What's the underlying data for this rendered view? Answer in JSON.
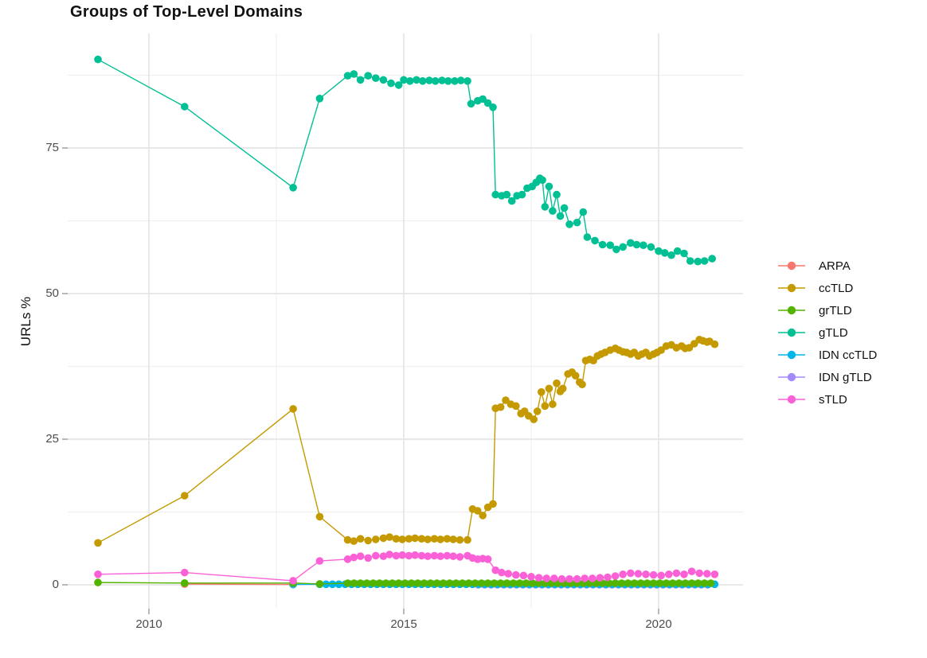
{
  "chart_data": {
    "type": "line",
    "title": "Groups of Top-Level Domains",
    "xlabel": "",
    "ylabel": "URLs %",
    "xlim": [
      2008.4,
      2021.7
    ],
    "ylim": [
      -4.1,
      94.5
    ],
    "x_ticks": [
      2010,
      2015,
      2020
    ],
    "x_tick_labels": [
      "2010",
      "2015",
      "2020"
    ],
    "x_minor_ticks": [
      2012.5,
      2017.5
    ],
    "y_ticks": [
      0,
      25,
      50,
      75
    ],
    "y_tick_labels": [
      "0",
      "25",
      "50",
      "75"
    ],
    "y_minor_ticks": [
      12.5,
      37.5,
      62.5,
      87.5
    ],
    "grid": true,
    "legend_position": "right",
    "series": [
      {
        "name": "ARPA",
        "color": "#F8766D",
        "points": [
          [
            2010.7,
            0.12
          ],
          [
            2012.83,
            0.06
          ]
        ]
      },
      {
        "name": "ccTLD",
        "color": "#C49A00",
        "points": [
          [
            2009,
            7.2
          ],
          [
            2010.7,
            15.3
          ],
          [
            2012.83,
            30.2
          ],
          [
            2013.35,
            11.7
          ],
          [
            2013.9,
            7.7
          ],
          [
            2014.02,
            7.5
          ],
          [
            2014.15,
            7.9
          ],
          [
            2014.3,
            7.6
          ],
          [
            2014.45,
            7.8
          ],
          [
            2014.6,
            8.0
          ],
          [
            2014.72,
            8.2
          ],
          [
            2014.85,
            7.9
          ],
          [
            2014.97,
            7.8
          ],
          [
            2015.1,
            7.9
          ],
          [
            2015.22,
            8.0
          ],
          [
            2015.35,
            7.9
          ],
          [
            2015.47,
            7.8
          ],
          [
            2015.6,
            7.9
          ],
          [
            2015.72,
            7.8
          ],
          [
            2015.85,
            7.9
          ],
          [
            2015.97,
            7.8
          ],
          [
            2016.1,
            7.7
          ],
          [
            2016.25,
            7.7
          ],
          [
            2016.35,
            13.0
          ],
          [
            2016.45,
            12.7
          ],
          [
            2016.55,
            11.9
          ],
          [
            2016.65,
            13.3
          ],
          [
            2016.75,
            13.9
          ],
          [
            2016.8,
            30.3
          ],
          [
            2016.9,
            30.5
          ],
          [
            2017.0,
            31.7
          ],
          [
            2017.1,
            31.0
          ],
          [
            2017.2,
            30.7
          ],
          [
            2017.3,
            29.4
          ],
          [
            2017.37,
            29.8
          ],
          [
            2017.45,
            29.0
          ],
          [
            2017.55,
            28.4
          ],
          [
            2017.62,
            29.8
          ],
          [
            2017.7,
            33.1
          ],
          [
            2017.77,
            30.7
          ],
          [
            2017.85,
            33.7
          ],
          [
            2017.92,
            31.0
          ],
          [
            2018.0,
            34.6
          ],
          [
            2018.07,
            33.2
          ],
          [
            2018.12,
            33.7
          ],
          [
            2018.22,
            36.2
          ],
          [
            2018.3,
            36.5
          ],
          [
            2018.37,
            35.9
          ],
          [
            2018.45,
            34.8
          ],
          [
            2018.5,
            34.4
          ],
          [
            2018.57,
            38.5
          ],
          [
            2018.65,
            38.7
          ],
          [
            2018.72,
            38.5
          ],
          [
            2018.8,
            39.3
          ],
          [
            2018.87,
            39.6
          ],
          [
            2018.95,
            39.9
          ],
          [
            2019.05,
            40.3
          ],
          [
            2019.15,
            40.6
          ],
          [
            2019.22,
            40.3
          ],
          [
            2019.3,
            40.0
          ],
          [
            2019.37,
            39.9
          ],
          [
            2019.45,
            39.6
          ],
          [
            2019.52,
            39.9
          ],
          [
            2019.6,
            39.3
          ],
          [
            2019.67,
            39.6
          ],
          [
            2019.75,
            39.9
          ],
          [
            2019.82,
            39.3
          ],
          [
            2019.9,
            39.6
          ],
          [
            2019.97,
            39.9
          ],
          [
            2020.05,
            40.3
          ],
          [
            2020.15,
            41.0
          ],
          [
            2020.25,
            41.2
          ],
          [
            2020.35,
            40.7
          ],
          [
            2020.45,
            41.0
          ],
          [
            2020.52,
            40.6
          ],
          [
            2020.6,
            40.7
          ],
          [
            2020.7,
            41.4
          ],
          [
            2020.8,
            42.1
          ],
          [
            2020.87,
            41.9
          ],
          [
            2020.95,
            41.7
          ],
          [
            2021.0,
            41.8
          ],
          [
            2021.1,
            41.3
          ]
        ]
      },
      {
        "name": "grTLD",
        "color": "#53B400",
        "points": [
          [
            2009,
            0.4
          ],
          [
            2010.7,
            0.3
          ],
          [
            2012.83,
            0.3
          ],
          [
            2013.35,
            0.15
          ]
        ],
        "runs": [
          {
            "from": 2013.9,
            "to": 2021.1,
            "step": 0.125,
            "value": 0.28
          }
        ]
      },
      {
        "name": "gTLD",
        "color": "#00C094",
        "points": [
          [
            2009,
            90.2
          ],
          [
            2010.7,
            82.1
          ],
          [
            2012.83,
            68.2
          ],
          [
            2013.35,
            83.5
          ],
          [
            2013.9,
            87.4
          ],
          [
            2014.02,
            87.7
          ],
          [
            2014.15,
            86.7
          ],
          [
            2014.3,
            87.4
          ],
          [
            2014.45,
            87.0
          ],
          [
            2014.6,
            86.7
          ],
          [
            2014.75,
            86.1
          ],
          [
            2014.9,
            85.8
          ],
          [
            2015.0,
            86.7
          ],
          [
            2015.12,
            86.5
          ],
          [
            2015.25,
            86.7
          ],
          [
            2015.37,
            86.5
          ],
          [
            2015.5,
            86.6
          ],
          [
            2015.62,
            86.5
          ],
          [
            2015.75,
            86.6
          ],
          [
            2015.87,
            86.5
          ],
          [
            2016.0,
            86.5
          ],
          [
            2016.12,
            86.6
          ],
          [
            2016.25,
            86.5
          ],
          [
            2016.32,
            82.6
          ],
          [
            2016.45,
            83.1
          ],
          [
            2016.55,
            83.4
          ],
          [
            2016.65,
            82.7
          ],
          [
            2016.75,
            82.0
          ],
          [
            2016.8,
            67.0
          ],
          [
            2016.92,
            66.8
          ],
          [
            2017.02,
            67.0
          ],
          [
            2017.12,
            65.9
          ],
          [
            2017.22,
            66.8
          ],
          [
            2017.32,
            67.0
          ],
          [
            2017.42,
            68.1
          ],
          [
            2017.52,
            68.4
          ],
          [
            2017.6,
            69.1
          ],
          [
            2017.67,
            69.8
          ],
          [
            2017.72,
            69.5
          ],
          [
            2017.77,
            64.9
          ],
          [
            2017.85,
            68.4
          ],
          [
            2017.92,
            64.2
          ],
          [
            2018.0,
            67.0
          ],
          [
            2018.07,
            63.3
          ],
          [
            2018.15,
            64.7
          ],
          [
            2018.25,
            61.9
          ],
          [
            2018.4,
            62.2
          ],
          [
            2018.52,
            64.0
          ],
          [
            2018.6,
            59.7
          ],
          [
            2018.75,
            59.1
          ],
          [
            2018.9,
            58.4
          ],
          [
            2019.05,
            58.3
          ],
          [
            2019.17,
            57.6
          ],
          [
            2019.3,
            58.0
          ],
          [
            2019.45,
            58.7
          ],
          [
            2019.57,
            58.4
          ],
          [
            2019.7,
            58.3
          ],
          [
            2019.85,
            58.0
          ],
          [
            2020.0,
            57.3
          ],
          [
            2020.12,
            57.0
          ],
          [
            2020.25,
            56.6
          ],
          [
            2020.37,
            57.3
          ],
          [
            2020.5,
            56.9
          ],
          [
            2020.62,
            55.6
          ],
          [
            2020.77,
            55.5
          ],
          [
            2020.9,
            55.6
          ],
          [
            2021.05,
            56.0
          ]
        ]
      },
      {
        "name": "IDN ccTLD",
        "color": "#00B6EB",
        "points": [
          [
            2012.83,
            0.05
          ]
        ],
        "runs": [
          {
            "from": 2013.35,
            "to": 2021.1,
            "step": 0.125,
            "value": 0.1
          }
        ]
      },
      {
        "name": "IDN gTLD",
        "color": "#A58AFF",
        "points": [],
        "runs": [
          {
            "from": 2016.46,
            "to": 2021.08,
            "step": 0.125,
            "value": 0.0
          }
        ]
      },
      {
        "name": "sTLD",
        "color": "#FB61D7",
        "points": [
          [
            2009,
            1.8
          ],
          [
            2010.7,
            2.1
          ],
          [
            2012.83,
            0.7
          ],
          [
            2013.35,
            4.1
          ],
          [
            2013.9,
            4.4
          ],
          [
            2014.02,
            4.7
          ],
          [
            2014.15,
            4.9
          ],
          [
            2014.3,
            4.6
          ],
          [
            2014.45,
            5.0
          ],
          [
            2014.6,
            4.9
          ],
          [
            2014.72,
            5.2
          ],
          [
            2014.85,
            5.0
          ],
          [
            2014.97,
            5.1
          ],
          [
            2015.1,
            5.0
          ],
          [
            2015.22,
            5.1
          ],
          [
            2015.35,
            5.0
          ],
          [
            2015.47,
            4.9
          ],
          [
            2015.6,
            5.0
          ],
          [
            2015.72,
            4.9
          ],
          [
            2015.85,
            5.0
          ],
          [
            2015.97,
            4.9
          ],
          [
            2016.1,
            4.8
          ],
          [
            2016.25,
            5.0
          ],
          [
            2016.35,
            4.6
          ],
          [
            2016.45,
            4.4
          ],
          [
            2016.55,
            4.5
          ],
          [
            2016.65,
            4.4
          ],
          [
            2016.8,
            2.5
          ],
          [
            2016.92,
            2.1
          ],
          [
            2017.05,
            1.9
          ],
          [
            2017.2,
            1.7
          ],
          [
            2017.35,
            1.6
          ],
          [
            2017.5,
            1.4
          ],
          [
            2017.65,
            1.2
          ],
          [
            2017.8,
            1.1
          ],
          [
            2017.95,
            1.1
          ],
          [
            2018.1,
            1.0
          ],
          [
            2018.25,
            1.0
          ],
          [
            2018.4,
            1.0
          ],
          [
            2018.55,
            1.1
          ],
          [
            2018.7,
            1.1
          ],
          [
            2018.85,
            1.2
          ],
          [
            2019.0,
            1.3
          ],
          [
            2019.15,
            1.5
          ],
          [
            2019.3,
            1.8
          ],
          [
            2019.45,
            2.0
          ],
          [
            2019.6,
            1.9
          ],
          [
            2019.75,
            1.8
          ],
          [
            2019.9,
            1.7
          ],
          [
            2020.05,
            1.6
          ],
          [
            2020.2,
            1.8
          ],
          [
            2020.35,
            2.0
          ],
          [
            2020.5,
            1.8
          ],
          [
            2020.65,
            2.3
          ],
          [
            2020.8,
            2.0
          ],
          [
            2020.95,
            1.9
          ],
          [
            2021.1,
            1.8
          ]
        ]
      }
    ],
    "style": {
      "grid_major_color": "#e5e5e5",
      "grid_minor_color": "#efefef",
      "tick_mark_color": "#999999",
      "tick_label_color": "#4d4d4d",
      "background": "#ffffff"
    }
  }
}
